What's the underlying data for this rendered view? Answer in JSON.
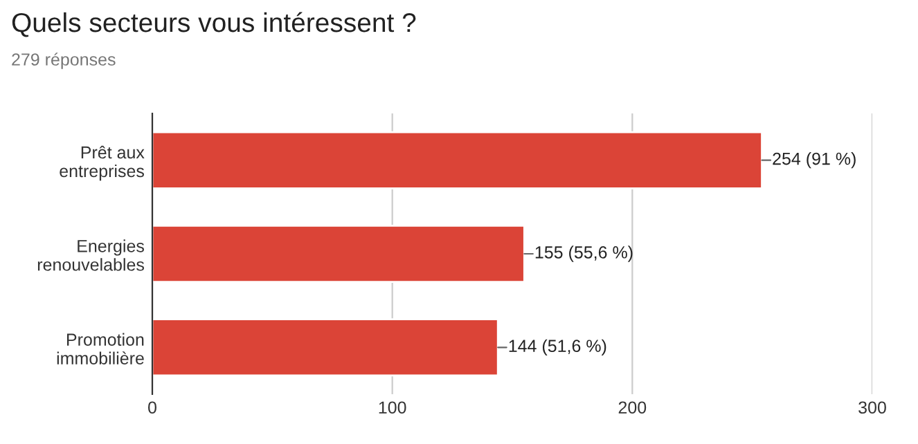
{
  "chart_data": {
    "type": "bar",
    "orientation": "horizontal",
    "title": "Quels secteurs vous intéressent ?",
    "subtitle": "279 réponses",
    "categories": [
      "Prêt aux\nentreprises",
      "Energies\nrenouvelables",
      "Promotion\nimmobilière"
    ],
    "values": [
      254,
      155,
      144
    ],
    "color": "#db4437",
    "value_labels": [
      "254 (91 %)",
      "155 (55,6 %)",
      "144 (51,6 %)"
    ],
    "xlim": [
      0,
      300
    ],
    "xticks": [
      0,
      100,
      200,
      300
    ],
    "grid": "x"
  }
}
